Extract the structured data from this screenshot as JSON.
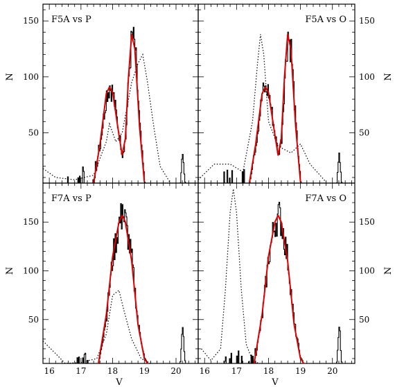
{
  "chart_data": {
    "type": "line",
    "layout": "2x2 panels, shared V axis",
    "xlabel": "V",
    "ylabel": "N",
    "xlim": [
      15.8,
      20.7
    ],
    "x_ticks": [
      "16",
      "17",
      "18",
      "19",
      "20"
    ],
    "colors": {
      "model_fit": "#dd0000",
      "observed": "#000000",
      "comparison": "#000000"
    },
    "line_styles": {
      "observed": "solid histogram",
      "model_fit": "solid",
      "comparison": "dotted"
    },
    "panels": [
      {
        "label": "F5A vs P",
        "ylim": [
          5,
          165
        ],
        "y_ticks": [
          "50",
          "100",
          "150"
        ],
        "y_axis_side": "left",
        "observed_peaks": [
          {
            "x": 17.9,
            "y": 92
          },
          {
            "x": 18.6,
            "y": 140
          },
          {
            "x": 20.2,
            "y": 32
          }
        ],
        "model_fit": [
          [
            17.4,
            5
          ],
          [
            17.6,
            40
          ],
          [
            17.8,
            85
          ],
          [
            17.9,
            91
          ],
          [
            18.0,
            86
          ],
          [
            18.2,
            48
          ],
          [
            18.3,
            30
          ],
          [
            18.4,
            45
          ],
          [
            18.5,
            100
          ],
          [
            18.6,
            138
          ],
          [
            18.7,
            125
          ],
          [
            18.85,
            55
          ],
          [
            19.0,
            6
          ]
        ],
        "comparison": [
          [
            15.8,
            18
          ],
          [
            16.2,
            10
          ],
          [
            16.8,
            8
          ],
          [
            17.4,
            12
          ],
          [
            17.8,
            42
          ],
          [
            17.9,
            58
          ],
          [
            18.1,
            42
          ],
          [
            18.3,
            50
          ],
          [
            18.6,
            95
          ],
          [
            18.8,
            112
          ],
          [
            18.95,
            120
          ],
          [
            19.1,
            95
          ],
          [
            19.3,
            55
          ],
          [
            19.5,
            20
          ],
          [
            19.8,
            6
          ]
        ]
      },
      {
        "label": "F5A vs O",
        "ylim": [
          5,
          165
        ],
        "y_ticks": [
          "50",
          "100",
          "150"
        ],
        "y_axis_side": "right",
        "observed_peaks": [
          {
            "x": 17.9,
            "y": 92
          },
          {
            "x": 18.6,
            "y": 140
          },
          {
            "x": 20.2,
            "y": 32
          }
        ],
        "model_fit": [
          [
            17.4,
            5
          ],
          [
            17.6,
            40
          ],
          [
            17.8,
            85
          ],
          [
            17.9,
            91
          ],
          [
            18.0,
            86
          ],
          [
            18.2,
            48
          ],
          [
            18.3,
            30
          ],
          [
            18.4,
            45
          ],
          [
            18.5,
            100
          ],
          [
            18.6,
            138
          ],
          [
            18.7,
            125
          ],
          [
            18.85,
            55
          ],
          [
            19.0,
            6
          ]
        ],
        "comparison": [
          [
            15.8,
            8
          ],
          [
            16.3,
            22
          ],
          [
            16.8,
            22
          ],
          [
            17.2,
            15
          ],
          [
            17.5,
            60
          ],
          [
            17.65,
            110
          ],
          [
            17.75,
            138
          ],
          [
            17.85,
            120
          ],
          [
            18.0,
            60
          ],
          [
            18.3,
            38
          ],
          [
            18.7,
            32
          ],
          [
            19.0,
            40
          ],
          [
            19.3,
            22
          ],
          [
            19.8,
            6
          ]
        ]
      },
      {
        "label": "F7A vs P",
        "ylim": [
          5,
          190
        ],
        "y_ticks": [
          "50",
          "100",
          "150"
        ],
        "y_axis_side": "left",
        "observed_peaks": [
          {
            "x": 18.3,
            "y": 168
          },
          {
            "x": 20.2,
            "y": 42
          }
        ],
        "model_fit": [
          [
            17.55,
            5
          ],
          [
            17.8,
            55
          ],
          [
            18.0,
            115
          ],
          [
            18.2,
            150
          ],
          [
            18.3,
            157
          ],
          [
            18.4,
            150
          ],
          [
            18.6,
            110
          ],
          [
            18.8,
            45
          ],
          [
            19.0,
            10
          ],
          [
            19.1,
            5
          ]
        ],
        "comparison": [
          [
            15.8,
            28
          ],
          [
            16.2,
            15
          ],
          [
            16.5,
            5
          ],
          [
            17.0,
            6
          ],
          [
            17.5,
            10
          ],
          [
            17.8,
            35
          ],
          [
            18.0,
            75
          ],
          [
            18.2,
            80
          ],
          [
            18.35,
            60
          ],
          [
            18.6,
            30
          ],
          [
            18.9,
            10
          ],
          [
            19.2,
            5
          ]
        ]
      },
      {
        "label": "F7A vs O",
        "ylim": [
          5,
          190
        ],
        "y_ticks": [
          "50",
          "100",
          "150"
        ],
        "y_axis_side": "right",
        "observed_peaks": [
          {
            "x": 18.3,
            "y": 168
          },
          {
            "x": 20.2,
            "y": 42
          }
        ],
        "model_fit": [
          [
            17.55,
            5
          ],
          [
            17.8,
            55
          ],
          [
            18.0,
            115
          ],
          [
            18.2,
            150
          ],
          [
            18.3,
            157
          ],
          [
            18.4,
            150
          ],
          [
            18.6,
            110
          ],
          [
            18.8,
            45
          ],
          [
            19.0,
            10
          ],
          [
            19.1,
            5
          ]
        ],
        "comparison": [
          [
            15.9,
            20
          ],
          [
            16.2,
            8
          ],
          [
            16.5,
            20
          ],
          [
            16.65,
            80
          ],
          [
            16.8,
            160
          ],
          [
            16.9,
            184
          ],
          [
            17.0,
            160
          ],
          [
            17.15,
            80
          ],
          [
            17.3,
            25
          ],
          [
            17.5,
            8
          ],
          [
            17.7,
            5
          ]
        ]
      }
    ]
  }
}
